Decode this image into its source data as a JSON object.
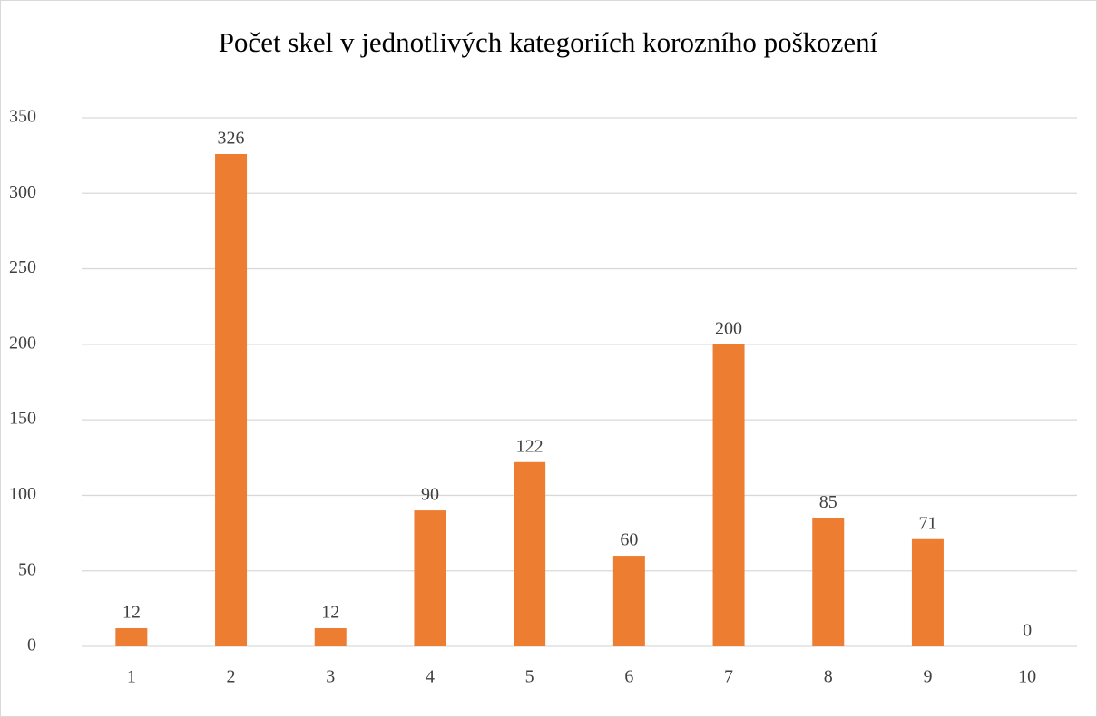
{
  "chart_data": {
    "type": "bar",
    "title": "Počet skel v jednotlivých kategoriích korozního poškození",
    "categories": [
      "1",
      "2",
      "3",
      "4",
      "5",
      "6",
      "7",
      "8",
      "9",
      "10"
    ],
    "values": [
      12,
      326,
      12,
      90,
      122,
      60,
      200,
      85,
      71,
      0
    ],
    "color": "#ed7d31",
    "ylim": [
      0,
      350
    ],
    "yticks": [
      0,
      50,
      100,
      150,
      200,
      250,
      300,
      350
    ],
    "grid": true
  }
}
